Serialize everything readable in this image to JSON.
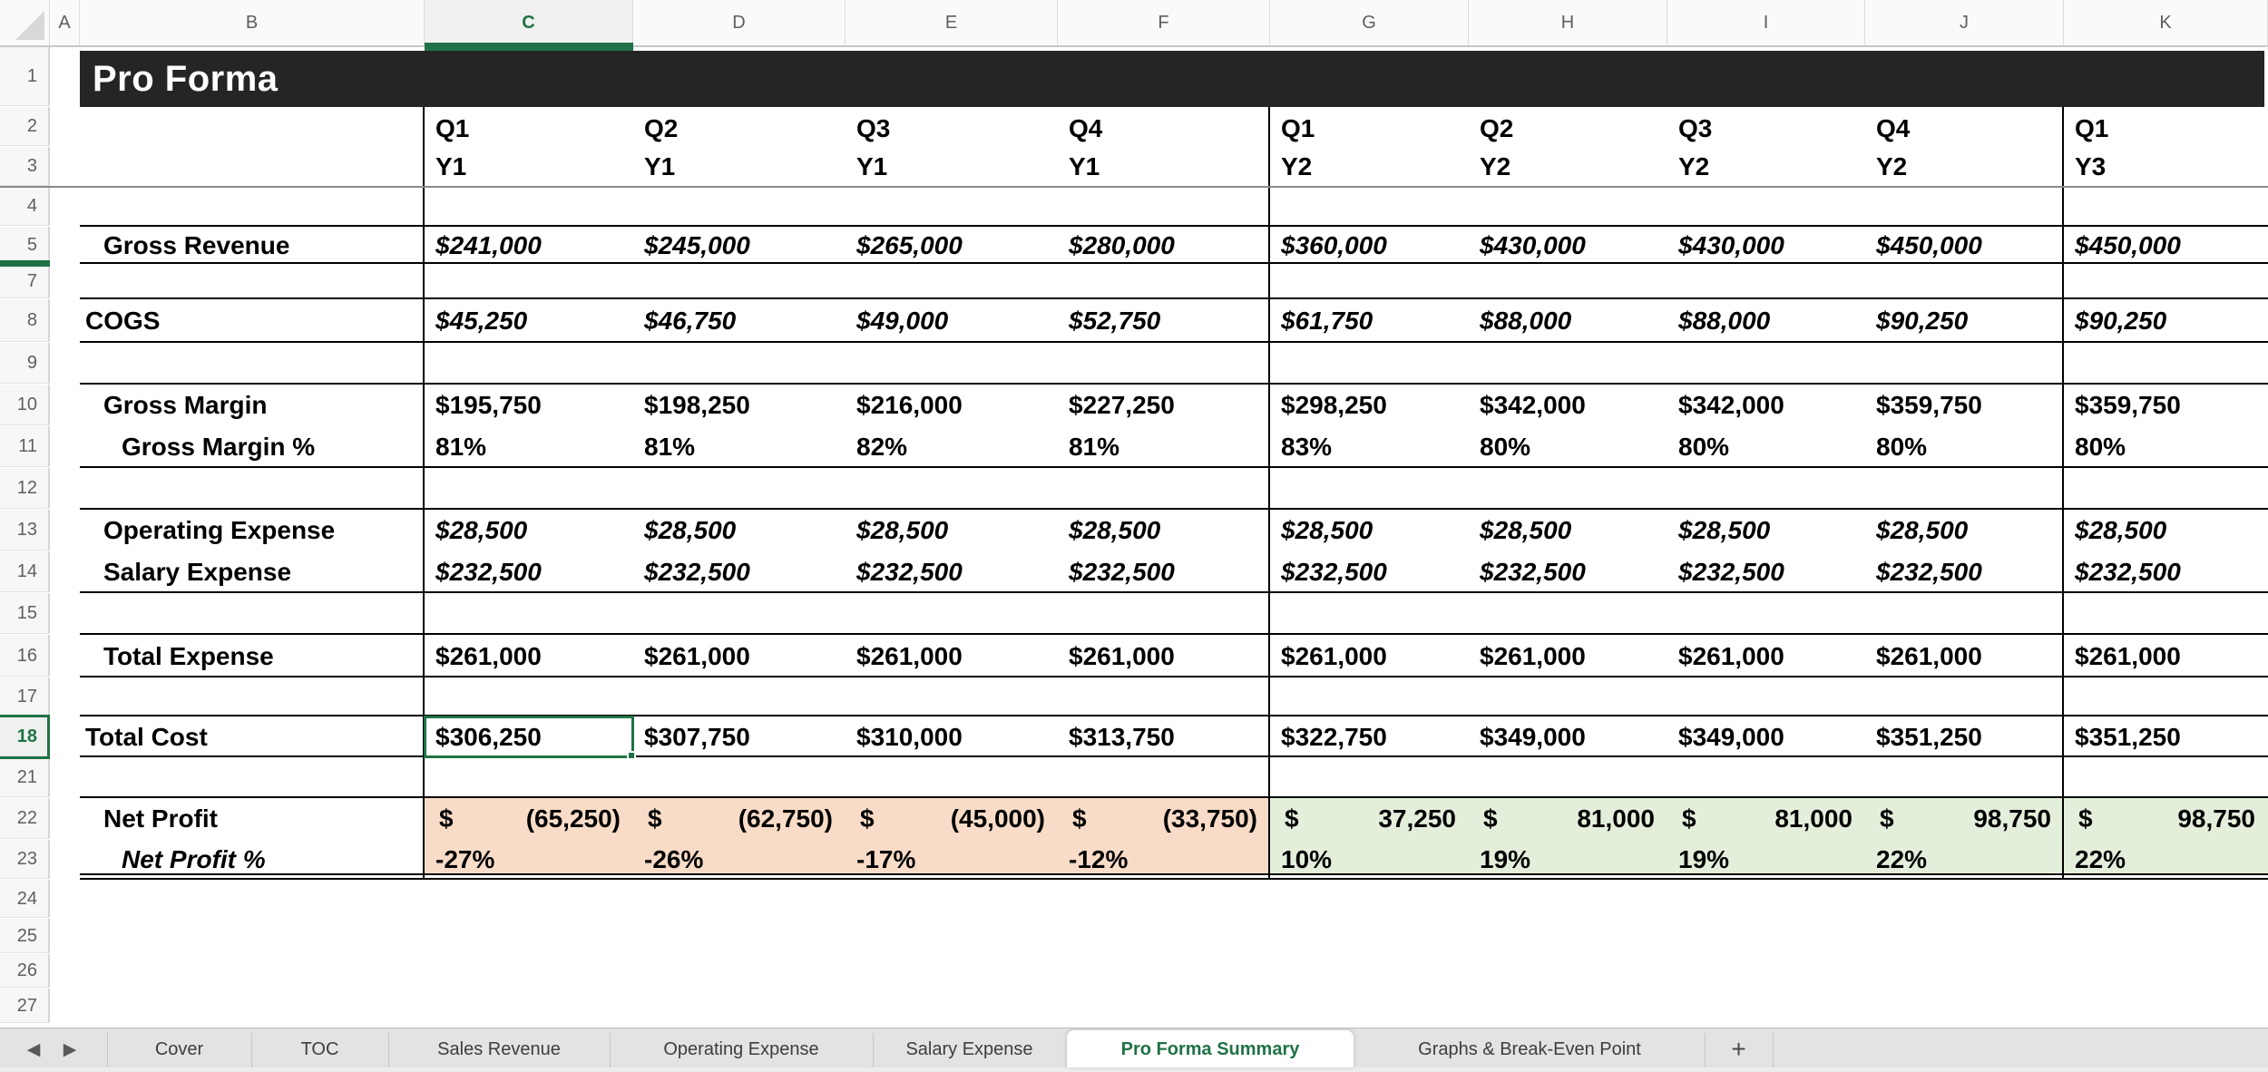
{
  "sheet_title": "Pro Forma",
  "column_letters": [
    "A",
    "B",
    "C",
    "D",
    "E",
    "F",
    "G",
    "H",
    "I",
    "J",
    "K"
  ],
  "selected_column": "C",
  "selected_row": "18",
  "row_numbers": [
    "1",
    "2",
    "3",
    "4",
    "5",
    "7",
    "8",
    "9",
    "10",
    "11",
    "12",
    "13",
    "14",
    "15",
    "16",
    "17",
    "18",
    "21",
    "22",
    "23",
    "24",
    "25",
    "26",
    "27"
  ],
  "period_headers": [
    {
      "quarter": "Q1",
      "year": "Y1"
    },
    {
      "quarter": "Q2",
      "year": "Y1"
    },
    {
      "quarter": "Q3",
      "year": "Y1"
    },
    {
      "quarter": "Q4",
      "year": "Y1"
    },
    {
      "quarter": "Q1",
      "year": "Y2"
    },
    {
      "quarter": "Q2",
      "year": "Y2"
    },
    {
      "quarter": "Q3",
      "year": "Y2"
    },
    {
      "quarter": "Q4",
      "year": "Y2"
    },
    {
      "quarter": "Q1",
      "year": "Y3"
    }
  ],
  "rows": [
    {
      "row": "5",
      "label": "Gross Revenue",
      "indent": 1,
      "italic": true,
      "values": [
        "$241,000",
        "$245,000",
        "$265,000",
        "$280,000",
        "$360,000",
        "$430,000",
        "$430,000",
        "$450,000",
        "$450,000"
      ]
    },
    {
      "row": "8",
      "label": "COGS",
      "indent": 0,
      "italic": true,
      "values": [
        "$45,250",
        "$46,750",
        "$49,000",
        "$52,750",
        "$61,750",
        "$88,000",
        "$88,000",
        "$90,250",
        "$90,250"
      ]
    },
    {
      "row": "10",
      "label": "Gross Margin",
      "indent": 1,
      "italic": false,
      "values": [
        "$195,750",
        "$198,250",
        "$216,000",
        "$227,250",
        "$298,250",
        "$342,000",
        "$342,000",
        "$359,750",
        "$359,750"
      ]
    },
    {
      "row": "11",
      "label": "Gross Margin %",
      "indent": 2,
      "italic": false,
      "values": [
        "81%",
        "81%",
        "82%",
        "81%",
        "83%",
        "80%",
        "80%",
        "80%",
        "80%"
      ]
    },
    {
      "row": "13",
      "label": "Operating Expense",
      "indent": 1,
      "italic": true,
      "values": [
        "$28,500",
        "$28,500",
        "$28,500",
        "$28,500",
        "$28,500",
        "$28,500",
        "$28,500",
        "$28,500",
        "$28,500"
      ]
    },
    {
      "row": "14",
      "label": "Salary Expense",
      "indent": 1,
      "italic": true,
      "values": [
        "$232,500",
        "$232,500",
        "$232,500",
        "$232,500",
        "$232,500",
        "$232,500",
        "$232,500",
        "$232,500",
        "$232,500"
      ]
    },
    {
      "row": "16",
      "label": "Total Expense",
      "indent": 1,
      "italic": false,
      "values": [
        "$261,000",
        "$261,000",
        "$261,000",
        "$261,000",
        "$261,000",
        "$261,000",
        "$261,000",
        "$261,000",
        "$261,000"
      ]
    },
    {
      "row": "18",
      "label": "Total Cost",
      "indent": 0,
      "italic": false,
      "values": [
        "$306,250",
        "$307,750",
        "$310,000",
        "$313,750",
        "$322,750",
        "$349,000",
        "$349,000",
        "$351,250",
        "$351,250"
      ]
    },
    {
      "row": "22",
      "label": "Net Profit",
      "indent": 1,
      "accounting": true,
      "label_italic": false,
      "values": [
        {
          "sym": "$",
          "num": "(65,250)"
        },
        {
          "sym": "$",
          "num": "(62,750)"
        },
        {
          "sym": "$",
          "num": "(45,000)"
        },
        {
          "sym": "$",
          "num": "(33,750)"
        },
        {
          "sym": "$",
          "num": "37,250"
        },
        {
          "sym": "$",
          "num": "81,000"
        },
        {
          "sym": "$",
          "num": "81,000"
        },
        {
          "sym": "$",
          "num": "98,750"
        },
        {
          "sym": "$",
          "num": "98,750"
        }
      ],
      "fills": [
        "negative",
        "negative",
        "negative",
        "negative",
        "positive",
        "positive",
        "positive",
        "positive",
        "positive"
      ]
    },
    {
      "row": "23",
      "label": "Net Profit %",
      "indent": 2,
      "label_italic": true,
      "values": [
        "-27%",
        "-26%",
        "-17%",
        "-12%",
        "10%",
        "19%",
        "19%",
        "22%",
        "22%"
      ],
      "fills": [
        "negative",
        "negative",
        "negative",
        "negative",
        "positive",
        "positive",
        "positive",
        "positive",
        "positive"
      ]
    }
  ],
  "colors": {
    "fill_negative": "#F9DCC8",
    "fill_positive": "#E3EFDB",
    "accent_green": "#1F7245",
    "titlebar": "#252525"
  },
  "selected_cell": {
    "column": "C",
    "row": "18",
    "value": "$306,250"
  },
  "tabs": {
    "items": [
      "Cover",
      "TOC",
      "Sales Revenue",
      "Operating Expense",
      "Salary Expense",
      "Pro Forma Summary",
      "Graphs & Break-Even Point"
    ],
    "active": "Pro Forma Summary",
    "add_label": "+",
    "nav_left": "◀",
    "nav_right": "▶"
  }
}
